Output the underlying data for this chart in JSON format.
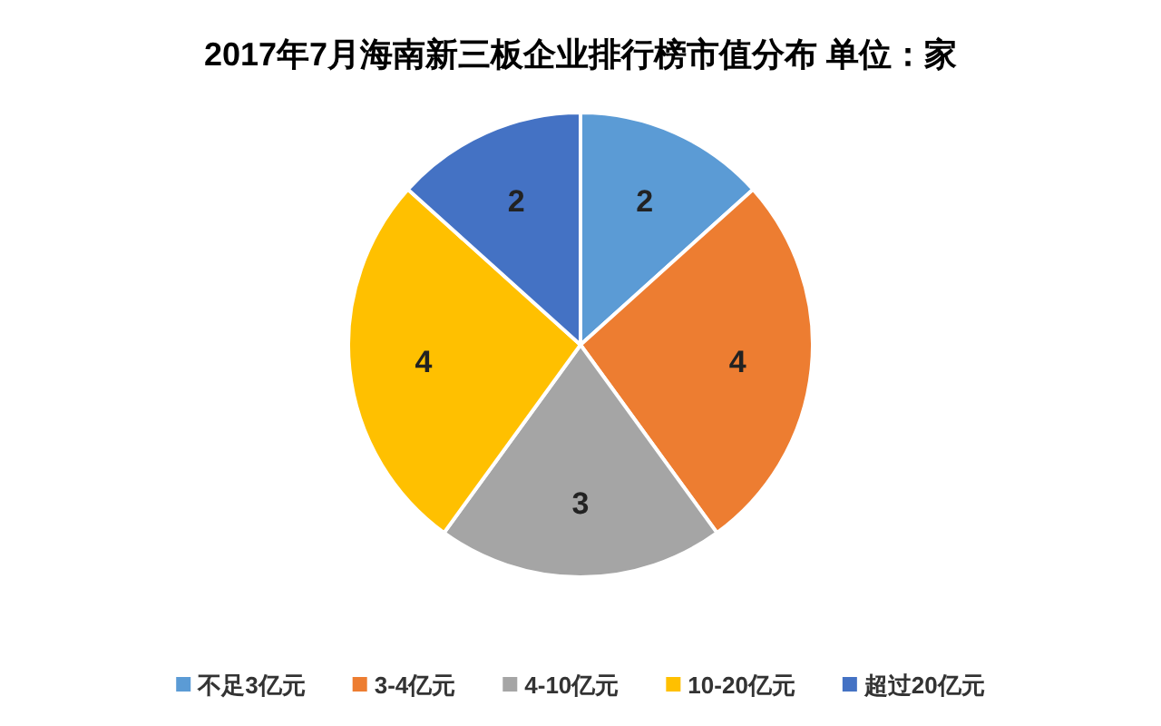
{
  "chart_data": {
    "type": "pie",
    "title": "2017年7月海南新三板企业排行榜市值分布 单位：家",
    "categories": [
      "不足3亿元",
      "3-4亿元",
      "4-10亿元",
      "10-20亿元",
      "超过20亿元"
    ],
    "values": [
      2,
      4,
      3,
      4,
      2
    ],
    "colors": [
      "#5b9bd5",
      "#ed7d31",
      "#a5a5a5",
      "#ffc000",
      "#4472c4"
    ],
    "data_labels": true,
    "legend": "bottom"
  }
}
